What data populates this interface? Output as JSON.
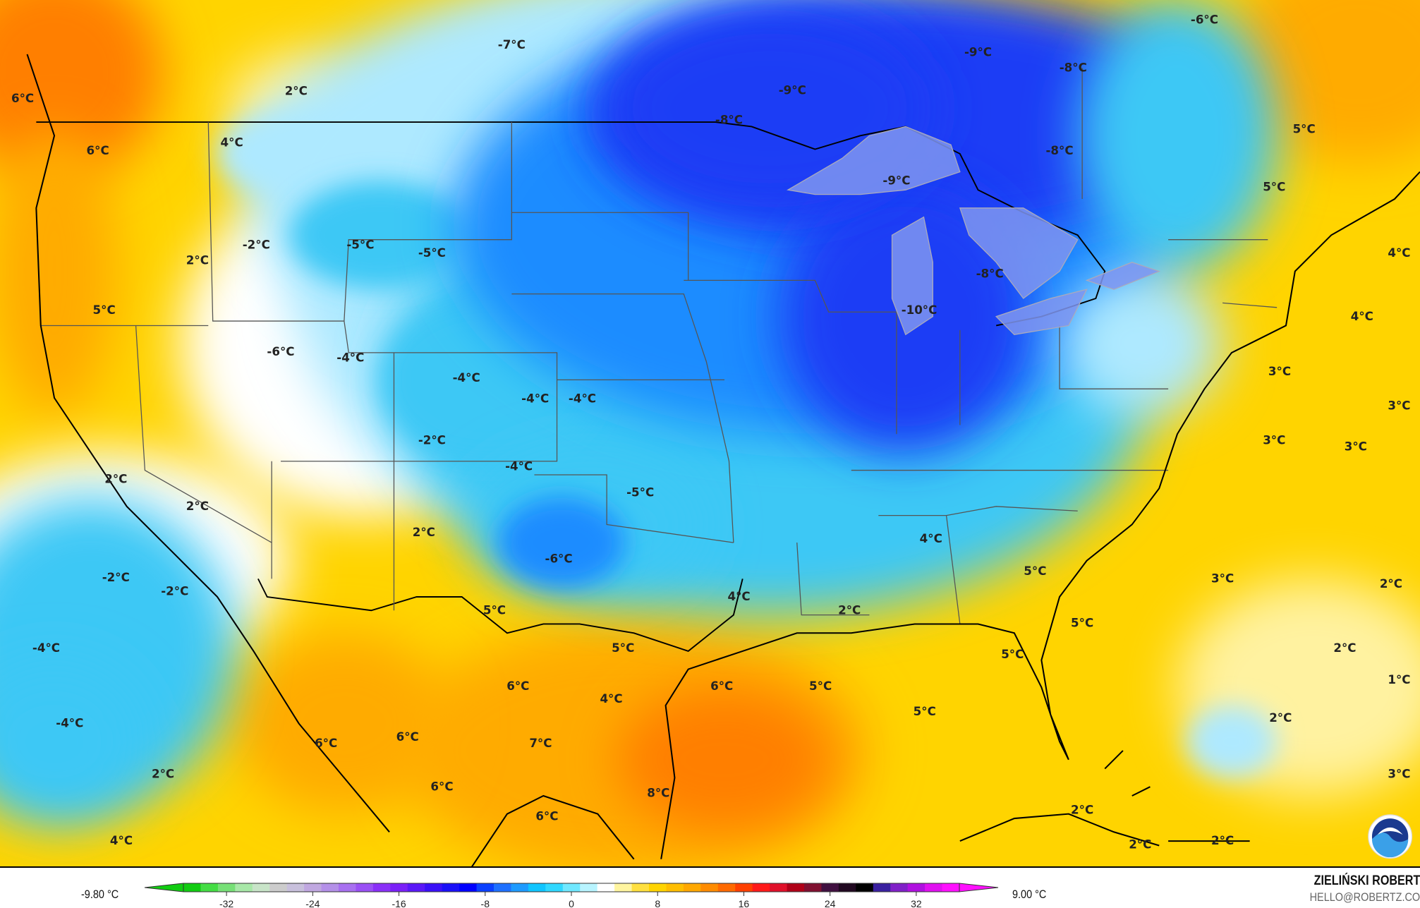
{
  "map": {
    "labels": [
      "-7°C",
      "-9°C",
      "-6°C",
      "-8°C",
      "2°C",
      "6°C",
      "-9°C",
      "-8°C",
      "4°C",
      "6°C",
      "-8°C",
      "5°C",
      "5°C",
      "-9°C",
      "-2°C",
      "-5°C",
      "-5°C",
      "2°C",
      "-8°C",
      "4°C",
      "5°C",
      "-10°C",
      "4°C",
      "-6°C",
      "-4°C",
      "-4°C",
      "-4°C",
      "-4°C",
      "3°C",
      "3°C",
      "-2°C",
      "3°C",
      "3°C",
      "2°C",
      "-4°C",
      "-5°C",
      "2°C",
      "2°C",
      "4°C",
      "-6°C",
      "5°C",
      "3°C",
      "2°C",
      "-2°C",
      "-2°C",
      "4°C",
      "2°C",
      "5°C",
      "5°C",
      "-4°C",
      "5°C",
      "2°C",
      "5°C",
      "1°C",
      "6°C",
      "6°C",
      "5°C",
      "4°C",
      "5°C",
      "2°C",
      "-4°C",
      "6°C",
      "6°C",
      "7°C",
      "2°C",
      "3°C",
      "6°C",
      "8°C",
      "2°C",
      "6°C",
      "4°C",
      "2°C",
      "2°C"
    ],
    "colors": {
      "cold_deep": "#1d3cf5",
      "cold": "#1f8cff",
      "cool": "#3cc8f5",
      "cool_light": "#aee9ff",
      "neutral": "#ffffff",
      "warm_light": "#fff2a0",
      "warm": "#ffd400",
      "warmer": "#ffab00",
      "hot": "#ff7f00",
      "lakes": "#7f95f0"
    },
    "logo": "NOAA"
  },
  "legend": {
    "min_label": "-9.80 °C",
    "max_label": "9.00 °C",
    "ticks": [
      "-32",
      "-24",
      "-16",
      "-8",
      "0",
      "8",
      "16",
      "24",
      "32"
    ],
    "colormap": [
      "#11cc11",
      "#44dd44",
      "#77e077",
      "#a8e8a8",
      "#c8e4c8",
      "#cccccc",
      "#c8c0dc",
      "#c0a8e0",
      "#b490e8",
      "#a870f0",
      "#9a50f5",
      "#8a30f8",
      "#7a20f8",
      "#5a18f8",
      "#3a10f8",
      "#1a10f8",
      "#0000ff",
      "#0a40ff",
      "#1e70ff",
      "#1e9bff",
      "#10c5ff",
      "#30d8ff",
      "#70e8ff",
      "#b8f4ff",
      "#ffffff",
      "#fff5a0",
      "#ffe040",
      "#ffd400",
      "#ffbe00",
      "#ffa800",
      "#ff8c00",
      "#ff6a00",
      "#ff4000",
      "#ff1a1a",
      "#e0102a",
      "#b00018",
      "#801030",
      "#401040",
      "#200820",
      "#000000",
      "#3a20a0",
      "#8020c8",
      "#b010e0",
      "#e010f0",
      "#ff10ff"
    ],
    "author": "ZIELIŃSKI ROBERT",
    "email": "HELLO@ROBERTZ.CO"
  }
}
